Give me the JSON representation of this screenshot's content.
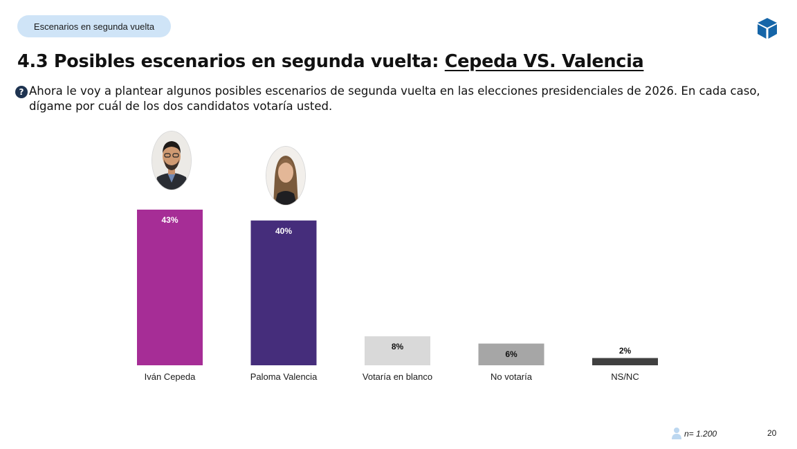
{
  "header": {
    "section_pill": "Escenarios en segunda vuelta",
    "logo_icon": "cube-logo-icon",
    "title_prefix": "4.3 Posibles escenarios en segunda vuelta: ",
    "title_emphasis": "Cepeda VS. Valencia"
  },
  "question": {
    "icon": "question-icon",
    "text": "Ahora le voy a plantear algunos posibles escenarios de segunda vuelta en las elecciones presidenciales de 2026. En cada caso, dígame por cuál de los dos candidatos votaría usted."
  },
  "chart_data": {
    "type": "bar",
    "categories": [
      "Iván Cepeda",
      "Paloma Valencia",
      "Votaría en blanco",
      "No votaría",
      "NS/NC"
    ],
    "values": [
      43,
      40,
      8,
      6,
      2
    ],
    "value_labels": [
      "43%",
      "40%",
      "8%",
      "6%",
      "2%"
    ],
    "colors": [
      "#a62d96",
      "#452d7b",
      "#d9d9d9",
      "#a6a6a6",
      "#404040"
    ],
    "label_colors": [
      "#ffffff",
      "#ffffff",
      "#111111",
      "#111111",
      "#111111"
    ],
    "title": "",
    "xlabel": "",
    "ylabel": "",
    "ylim": [
      0,
      43
    ],
    "grid": false,
    "legend": "none"
  },
  "footer": {
    "person_icon": "person-icon",
    "sample": "n= 1.200",
    "page_number": "20"
  }
}
